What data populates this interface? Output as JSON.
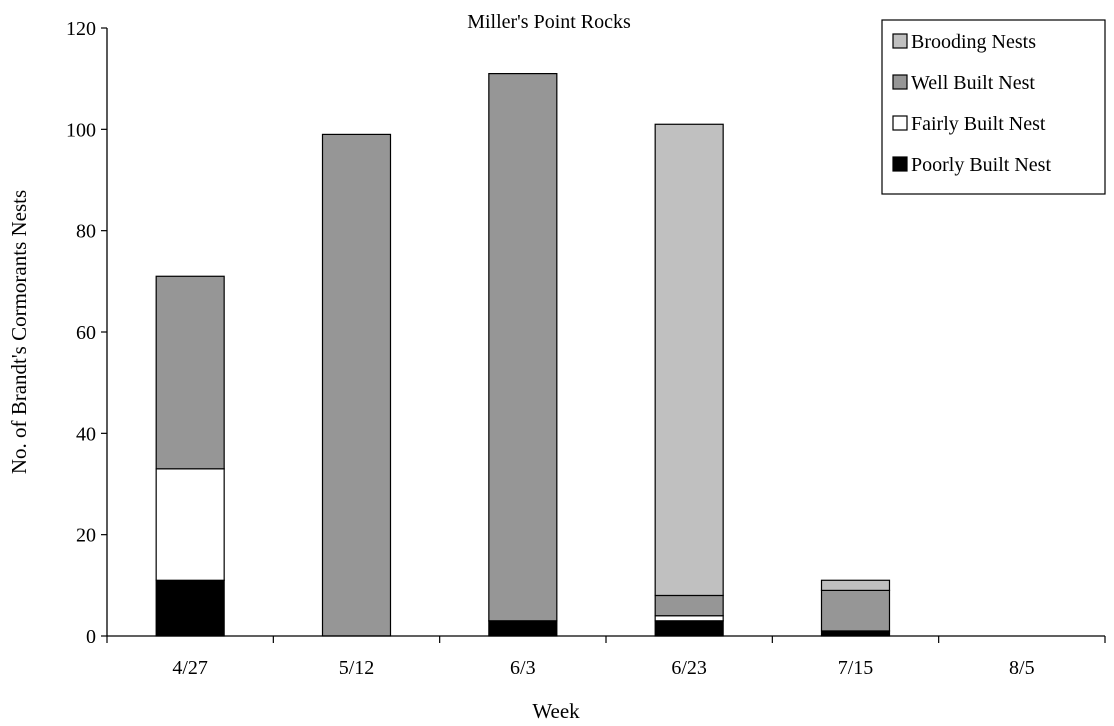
{
  "chart_data": {
    "type": "bar",
    "stacked": true,
    "title": "Miller's Point Rocks",
    "xlabel": "Week",
    "ylabel": "No. of Brandt's Cormorants Nests",
    "categories": [
      "4/27",
      "5/12",
      "6/3",
      "6/23",
      "7/15",
      "8/5"
    ],
    "ylim": [
      0,
      120
    ],
    "yticks": [
      0,
      20,
      40,
      60,
      80,
      100,
      120
    ],
    "grid": false,
    "legend_position": "top-right",
    "series": [
      {
        "name": "Poorly Built Nest",
        "color": "#000000",
        "values": [
          11,
          0,
          3,
          3,
          1,
          0
        ]
      },
      {
        "name": "Fairly Built Nest",
        "color": "#ffffff",
        "values": [
          22,
          0,
          0,
          1,
          0,
          0
        ]
      },
      {
        "name": "Well Built Nest",
        "color": "#969696",
        "values": [
          38,
          99,
          108,
          4,
          8,
          0
        ]
      },
      {
        "name": "Brooding Nests",
        "color": "#c0c0c0",
        "values": [
          0,
          0,
          0,
          93,
          2,
          0
        ]
      }
    ],
    "legend_order": [
      "Brooding Nests",
      "Well Built Nest",
      "Fairly Built Nest",
      "Poorly Built Nest"
    ]
  }
}
